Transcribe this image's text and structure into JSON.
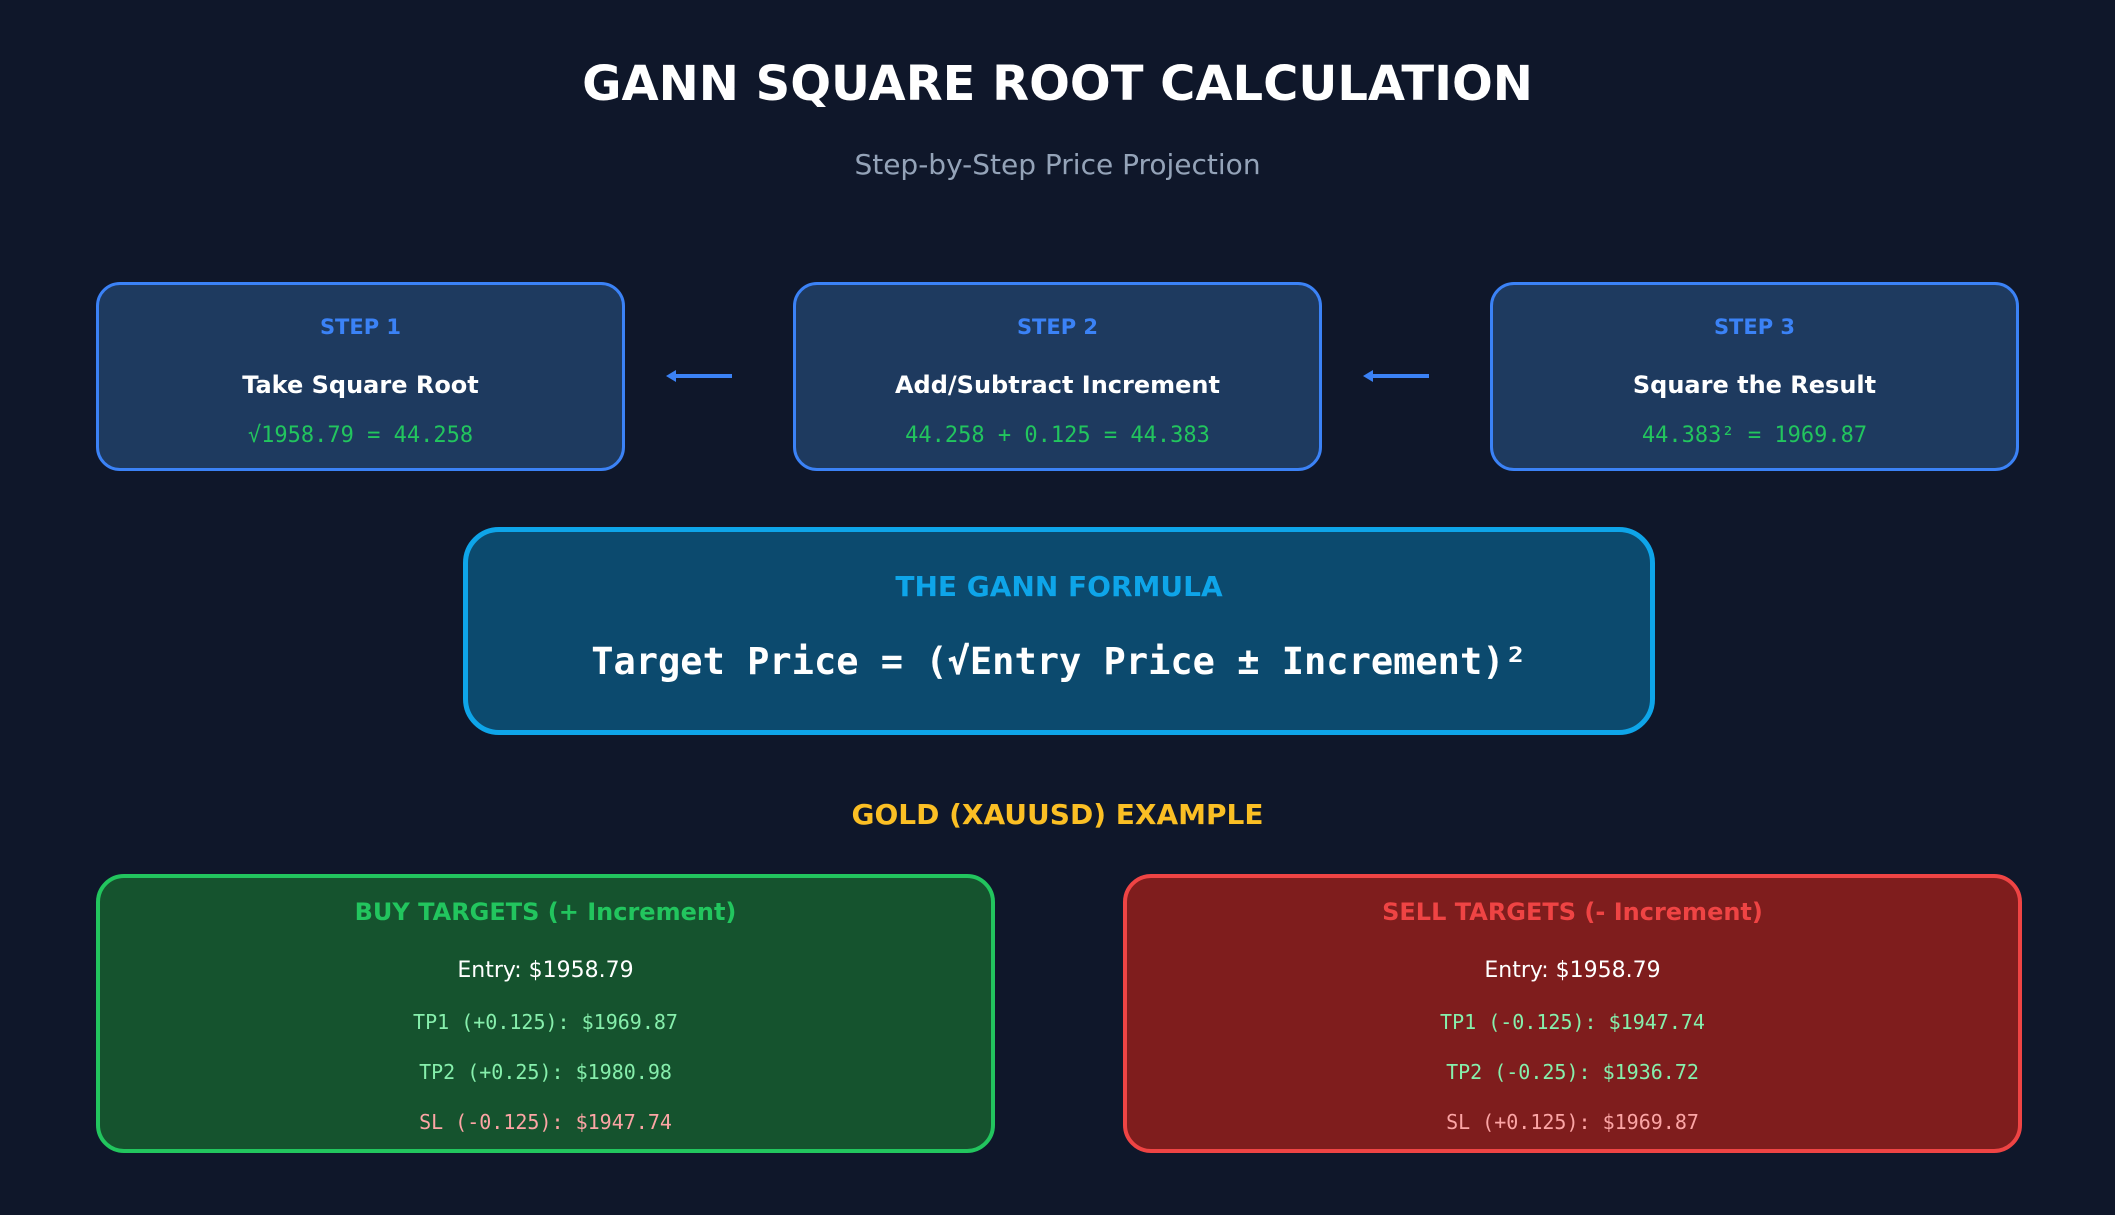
{
  "header": {
    "title": "GANN SQUARE ROOT CALCULATION",
    "subtitle": "Step-by-Step Price Projection"
  },
  "steps": [
    {
      "label": "STEP 1",
      "title": "Take Square Root",
      "equation": "√1958.79 = 44.258"
    },
    {
      "label": "STEP 2",
      "title": "Add/Subtract Increment",
      "equation": "44.258 + 0.125 = 44.383"
    },
    {
      "label": "STEP 3",
      "title": "Square the Result",
      "equation": "44.383² = 1969.87"
    }
  ],
  "formula": {
    "title": "THE GANN FORMULA",
    "expression": "Target Price = (√Entry Price ± Increment)²"
  },
  "example": {
    "title": "GOLD (XAUUSD) EXAMPLE",
    "buy": {
      "title": "BUY TARGETS (+ Increment)",
      "entry": "Entry: $1958.79",
      "tp1": "TP1 (+0.125): $1969.87",
      "tp2": "TP2 (+0.25): $1980.98",
      "sl": "SL (-0.125): $1947.74"
    },
    "sell": {
      "title": "SELL TARGETS (- Increment)",
      "entry": "Entry: $1958.79",
      "tp1": "TP1 (-0.125): $1947.74",
      "tp2": "TP2 (-0.25): $1936.72",
      "sl": "SL (+0.125): $1969.87"
    }
  },
  "colors": {
    "background": "#0f172a",
    "step_accent": "#3b82f6",
    "formula_accent": "#0ea5e9",
    "buy": "#22c55e",
    "sell": "#ef4444",
    "gold": "#fbbf24"
  }
}
